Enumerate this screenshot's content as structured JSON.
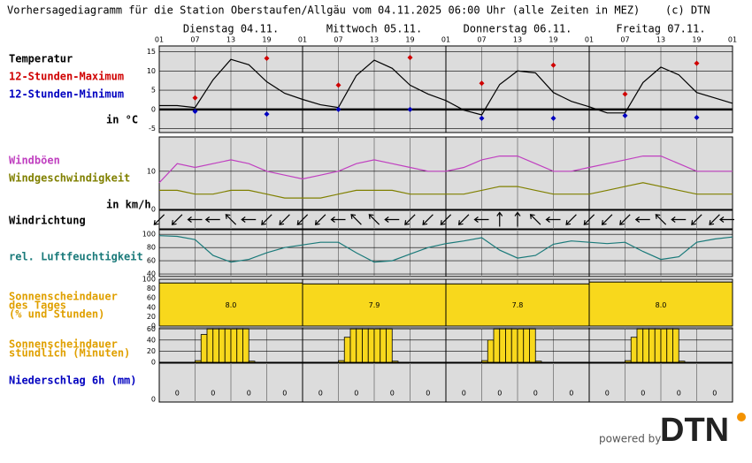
{
  "title": "Vorhersagediagramm für die Station Oberstaufen/Allgäu vom 04.11.2025 06:00 Uhr (alle Zeiten in MEZ)",
  "credit": "(c) DTN",
  "days": [
    "Dienstag 04.11.",
    "Mittwoch 05.11.",
    "Donnerstag 06.11.",
    "Freitag 07.11."
  ],
  "hour_labels": [
    "01",
    "07",
    "13",
    "19",
    "01",
    "07",
    "13",
    "19",
    "01",
    "07",
    "13",
    "19",
    "01",
    "07",
    "13",
    "19",
    "01"
  ],
  "footer": {
    "powered_by": "powered by",
    "logo": "DTN"
  },
  "chart_data": [
    {
      "type": "line",
      "label": "Temperatur",
      "unit_label": "in °C",
      "ylim": [
        -6,
        16.5
      ],
      "yticks": [
        -5,
        0,
        5,
        10,
        15
      ],
      "series": [
        {
          "color": "#000000",
          "values": [
            1,
            1,
            0.5,
            7.7,
            13,
            11.6,
            7.2,
            4.2,
            2.6,
            1.2,
            0.5,
            8.8,
            12.8,
            10.7,
            6.3,
            4,
            2.3,
            -0.2,
            -1.4,
            6.5,
            10,
            9.5,
            4.4,
            2.1,
            0.7,
            -0.9,
            -0.9,
            7,
            11,
            9,
            4.4,
            3,
            1.6
          ]
        },
        {
          "name": "12-Stunden-Maximum",
          "color": "#d00000",
          "style": "diamond",
          "values": [
            3,
            13.3,
            6.3,
            13.5,
            6.8,
            11.5,
            4,
            12
          ]
        },
        {
          "name": "12-Stunden-Minimum",
          "color": "#0000c0",
          "style": "diamond",
          "values": [
            -0.5,
            -1.2,
            0,
            0,
            -2.3,
            -2.3,
            -1.6,
            -2.1
          ]
        }
      ]
    },
    {
      "type": "line",
      "unit_label": "in km/h",
      "ylim": [
        0,
        19
      ],
      "yticks": [
        0,
        10
      ],
      "series": [
        {
          "name": "Windböen",
          "color": "#c040c0",
          "values": [
            7,
            12,
            11,
            12,
            13,
            12,
            10,
            9,
            8,
            9,
            10,
            12,
            13,
            12,
            11,
            10,
            10,
            11,
            13,
            14,
            14,
            12,
            10,
            10,
            11,
            12,
            13,
            14,
            14,
            12,
            10,
            10,
            10
          ]
        },
        {
          "name": "Windgeschwindigkeit",
          "color": "#808000",
          "values": [
            5,
            5,
            4,
            4,
            5,
            5,
            4,
            3,
            3,
            3,
            4,
            5,
            5,
            5,
            4,
            4,
            4,
            4,
            5,
            6,
            6,
            5,
            4,
            4,
            4,
            5,
            6,
            7,
            6,
            5,
            4,
            4,
            4
          ]
        }
      ]
    },
    {
      "type": "arrows",
      "label": "Windrichtung",
      "values": [
        45,
        45,
        90,
        90,
        135,
        90,
        45,
        45,
        45,
        45,
        90,
        135,
        135,
        90,
        45,
        45,
        45,
        45,
        90,
        180,
        180,
        135,
        90,
        45,
        45,
        45,
        45,
        90,
        135,
        90,
        45,
        45,
        90
      ]
    },
    {
      "type": "line",
      "ylim": [
        36,
        107
      ],
      "yticks": [
        40,
        60,
        80,
        100
      ],
      "series": [
        {
          "name": "rel. Luftfeuchtigkeit",
          "color": "#1a7a7a",
          "values": [
            98,
            97,
            92,
            68,
            58,
            62,
            72,
            80,
            84,
            88,
            88,
            72,
            58,
            60,
            70,
            80,
            86,
            90,
            95,
            76,
            64,
            68,
            85,
            90,
            88,
            86,
            88,
            74,
            62,
            66,
            88,
            93,
            96
          ]
        }
      ]
    },
    {
      "type": "daybar",
      "label_lines": [
        "Sonnenscheindauer",
        "des Tages",
        "(% und Stunden)"
      ],
      "label_color": "#e0a000",
      "color": "#f8d81c",
      "ylim": [
        0,
        100
      ],
      "yticks": [
        0,
        20,
        40,
        60,
        80,
        100
      ],
      "values": [
        92,
        90,
        90,
        94
      ],
      "hours_labels": [
        "8.0",
        "7.9",
        "7.8",
        "8.0"
      ]
    },
    {
      "type": "bar",
      "label_lines": [
        "Sonnenscheindauer",
        "stündlich (Minuten)"
      ],
      "label_color": "#e0a000",
      "color": "#f8d81c",
      "ylim": [
        0,
        62
      ],
      "yticks": [
        0,
        20,
        40,
        60
      ],
      "values": [
        0,
        0,
        0,
        0,
        0,
        0,
        3,
        50,
        60,
        60,
        60,
        60,
        60,
        60,
        60,
        2,
        0,
        0,
        0,
        0,
        0,
        0,
        0,
        0,
        0,
        0,
        0,
        0,
        0,
        0,
        3,
        45,
        60,
        60,
        60,
        60,
        60,
        60,
        60,
        2,
        0,
        0,
        0,
        0,
        0,
        0,
        0,
        0,
        0,
        0,
        0,
        0,
        0,
        0,
        3,
        40,
        60,
        60,
        60,
        60,
        60,
        60,
        60,
        2,
        0,
        0,
        0,
        0,
        0,
        0,
        0,
        0,
        0,
        0,
        0,
        0,
        0,
        0,
        3,
        45,
        60,
        60,
        60,
        60,
        60,
        60,
        60,
        2,
        0,
        0,
        0,
        0,
        0,
        0,
        0,
        0
      ]
    },
    {
      "type": "text_values",
      "label": "Niederschlag 6h (mm)",
      "label_color": "#0000c0",
      "yticks": [
        0
      ],
      "values": [
        0,
        0,
        0,
        0,
        0,
        0,
        0,
        0,
        0,
        0,
        0,
        0,
        0,
        0,
        0,
        0
      ]
    }
  ]
}
